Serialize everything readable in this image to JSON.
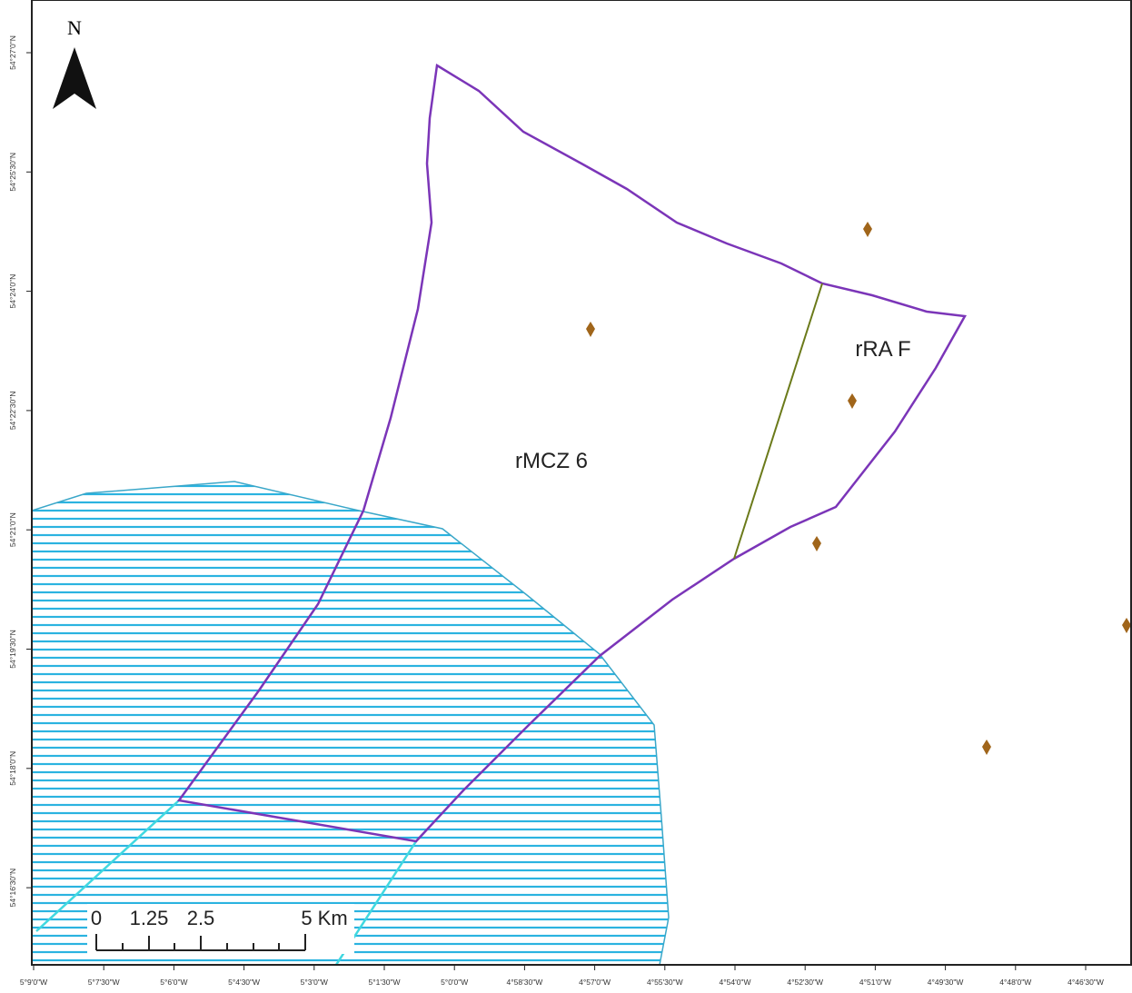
{
  "north": "N",
  "areas": [
    {
      "label": "rMCZ 6"
    },
    {
      "label": "rRA F"
    }
  ],
  "scale_bar": [
    "0",
    "1.25",
    "2.5",
    "5 Km"
  ],
  "longitude_ticks": [
    "5°9'0\"W",
    "5°7'30\"W",
    "5°6'0\"W",
    "5°4'30\"W",
    "5°3'0\"W",
    "5°1'30\"W",
    "5°0'0\"W",
    "4°58'30\"W",
    "4°57'0\"W",
    "4°55'30\"W",
    "4°54'0\"W",
    "4°52'30\"W",
    "4°51'0\"W",
    "4°49'30\"W",
    "4°48'0\"W",
    "4°46'30\"W"
  ],
  "latitude_ticks": [
    "54°27'0\"N",
    "54°25'30\"N",
    "54°24'0\"N",
    "54°22'30\"N",
    "54°21'0\"N",
    "54°19'30\"N",
    "54°18'0\"N",
    "54°16'30\"N"
  ]
}
